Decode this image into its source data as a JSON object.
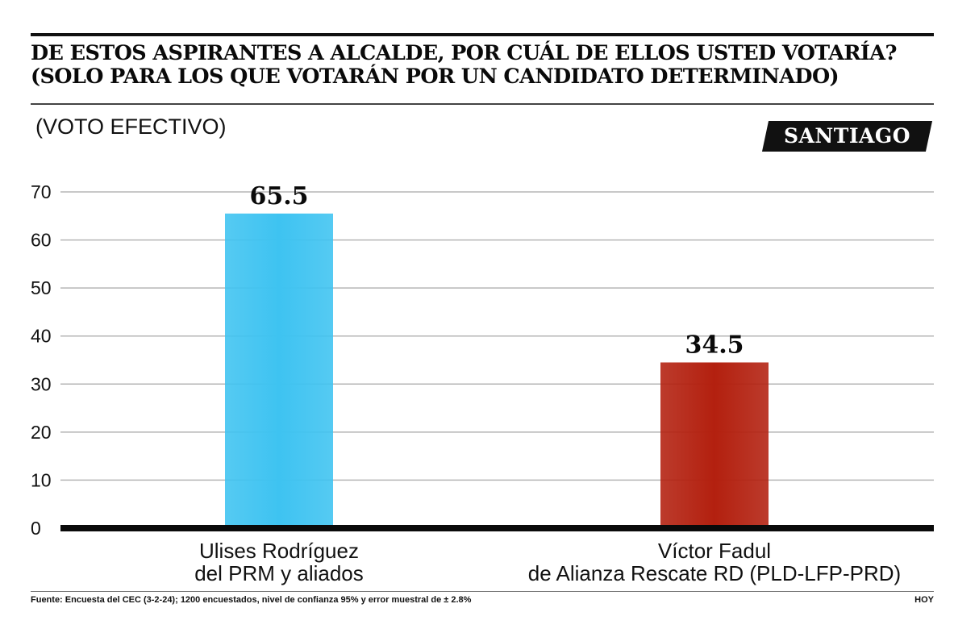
{
  "title": {
    "line1": "DE ESTOS ASPIRANTES A ALCALDE, POR CUÁL DE ELLOS USTED VOTARÍA?",
    "line2": "(SOLO PARA LOS QUE VOTARÁN POR UN CANDIDATO DETERMINADO)"
  },
  "subtitle": "(VOTO EFECTIVO)",
  "badge": "SANTIAGO",
  "chart_data": {
    "type": "bar",
    "categories": [
      [
        "Ulises Rodríguez",
        "del PRM y aliados"
      ],
      [
        "Víctor Fadul",
        "de Alianza Rescate RD (PLD-LFP-PRD)"
      ]
    ],
    "values": [
      65.5,
      34.5
    ],
    "value_labels": [
      "65.5",
      "34.5"
    ],
    "colors": [
      "#3ec3f1",
      "#b3200f"
    ],
    "ylim": [
      0,
      70
    ],
    "yticks": [
      0,
      10,
      20,
      30,
      40,
      50,
      60,
      70
    ],
    "grid": true,
    "xlabel": "",
    "ylabel": ""
  },
  "footer": {
    "source": "Fuente: Encuesta del CEC (3-2-24); 1200 encuestados, nivel de confianza 95% y error muestral de ± 2.8%",
    "credit": "HOY"
  }
}
